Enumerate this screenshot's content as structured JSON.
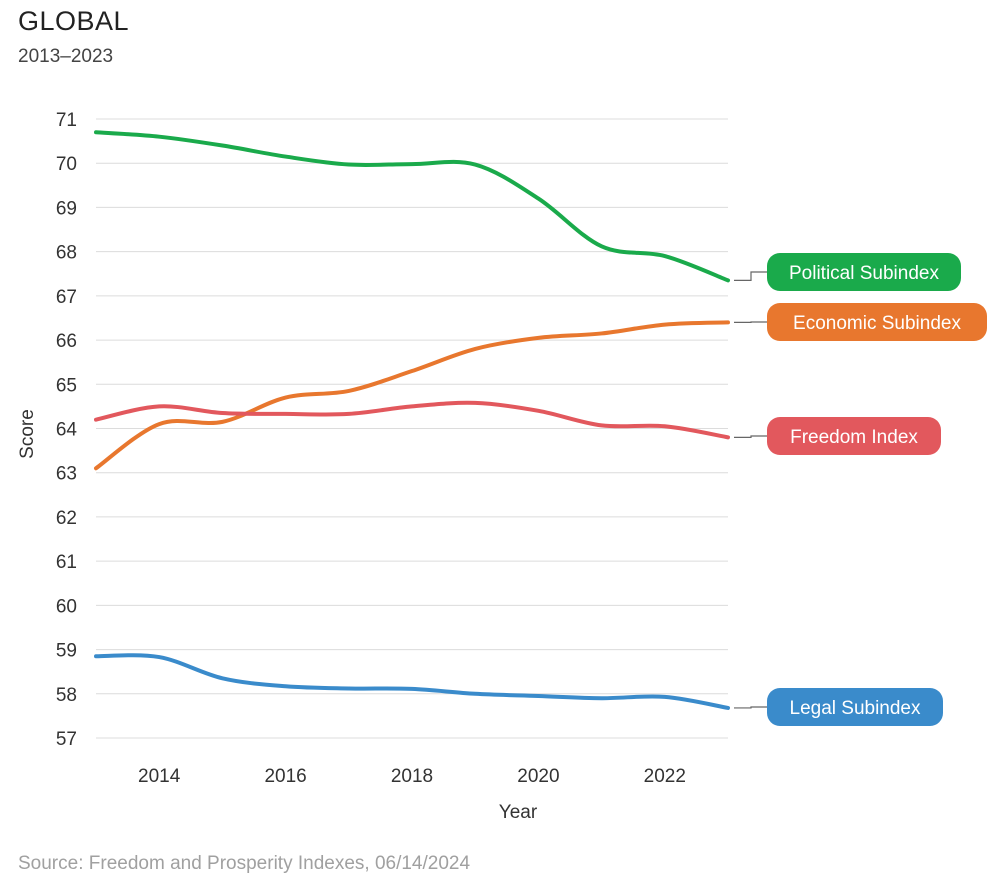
{
  "header": {
    "title": "GLOBAL",
    "subtitle": "2013–2023"
  },
  "footer": {
    "source": "Source: Freedom and Prosperity Indexes, 06/14/2024"
  },
  "chart_data": {
    "type": "line",
    "xlabel": "Year",
    "ylabel": "Score",
    "xlim": [
      2013,
      2023
    ],
    "ylim": [
      57,
      71
    ],
    "x_ticks": [
      2014,
      2016,
      2018,
      2020,
      2022
    ],
    "y_ticks": [
      57,
      58,
      59,
      60,
      61,
      62,
      63,
      64,
      65,
      66,
      67,
      68,
      69,
      70,
      71
    ],
    "grid": "horizontal",
    "series": [
      {
        "name": "Political Subindex",
        "color": "#1aaa4b",
        "x": [
          2013,
          2014,
          2015,
          2016,
          2017,
          2018,
          2019,
          2020,
          2021,
          2022,
          2023
        ],
        "values": [
          70.7,
          70.6,
          70.4,
          70.15,
          69.97,
          69.98,
          69.97,
          69.2,
          68.12,
          67.9,
          67.35
        ]
      },
      {
        "name": "Economic Subindex",
        "color": "#e8772e",
        "x": [
          2013,
          2014,
          2015,
          2016,
          2017,
          2018,
          2019,
          2020,
          2021,
          2022,
          2023
        ],
        "values": [
          63.1,
          64.1,
          64.15,
          64.7,
          64.85,
          65.3,
          65.8,
          66.05,
          66.15,
          66.35,
          66.4
        ]
      },
      {
        "name": "Freedom Index",
        "color": "#e2585d",
        "x": [
          2013,
          2014,
          2015,
          2016,
          2017,
          2018,
          2019,
          2020,
          2021,
          2022,
          2023
        ],
        "values": [
          64.2,
          64.5,
          64.35,
          64.33,
          64.33,
          64.5,
          64.58,
          64.4,
          64.07,
          64.05,
          63.8
        ]
      },
      {
        "name": "Legal Subindex",
        "color": "#3a8bcb",
        "x": [
          2013,
          2014,
          2015,
          2016,
          2017,
          2018,
          2019,
          2020,
          2021,
          2022,
          2023
        ],
        "values": [
          58.85,
          58.83,
          58.35,
          58.17,
          58.12,
          58.11,
          58.0,
          57.95,
          57.9,
          57.93,
          57.68
        ]
      }
    ]
  }
}
